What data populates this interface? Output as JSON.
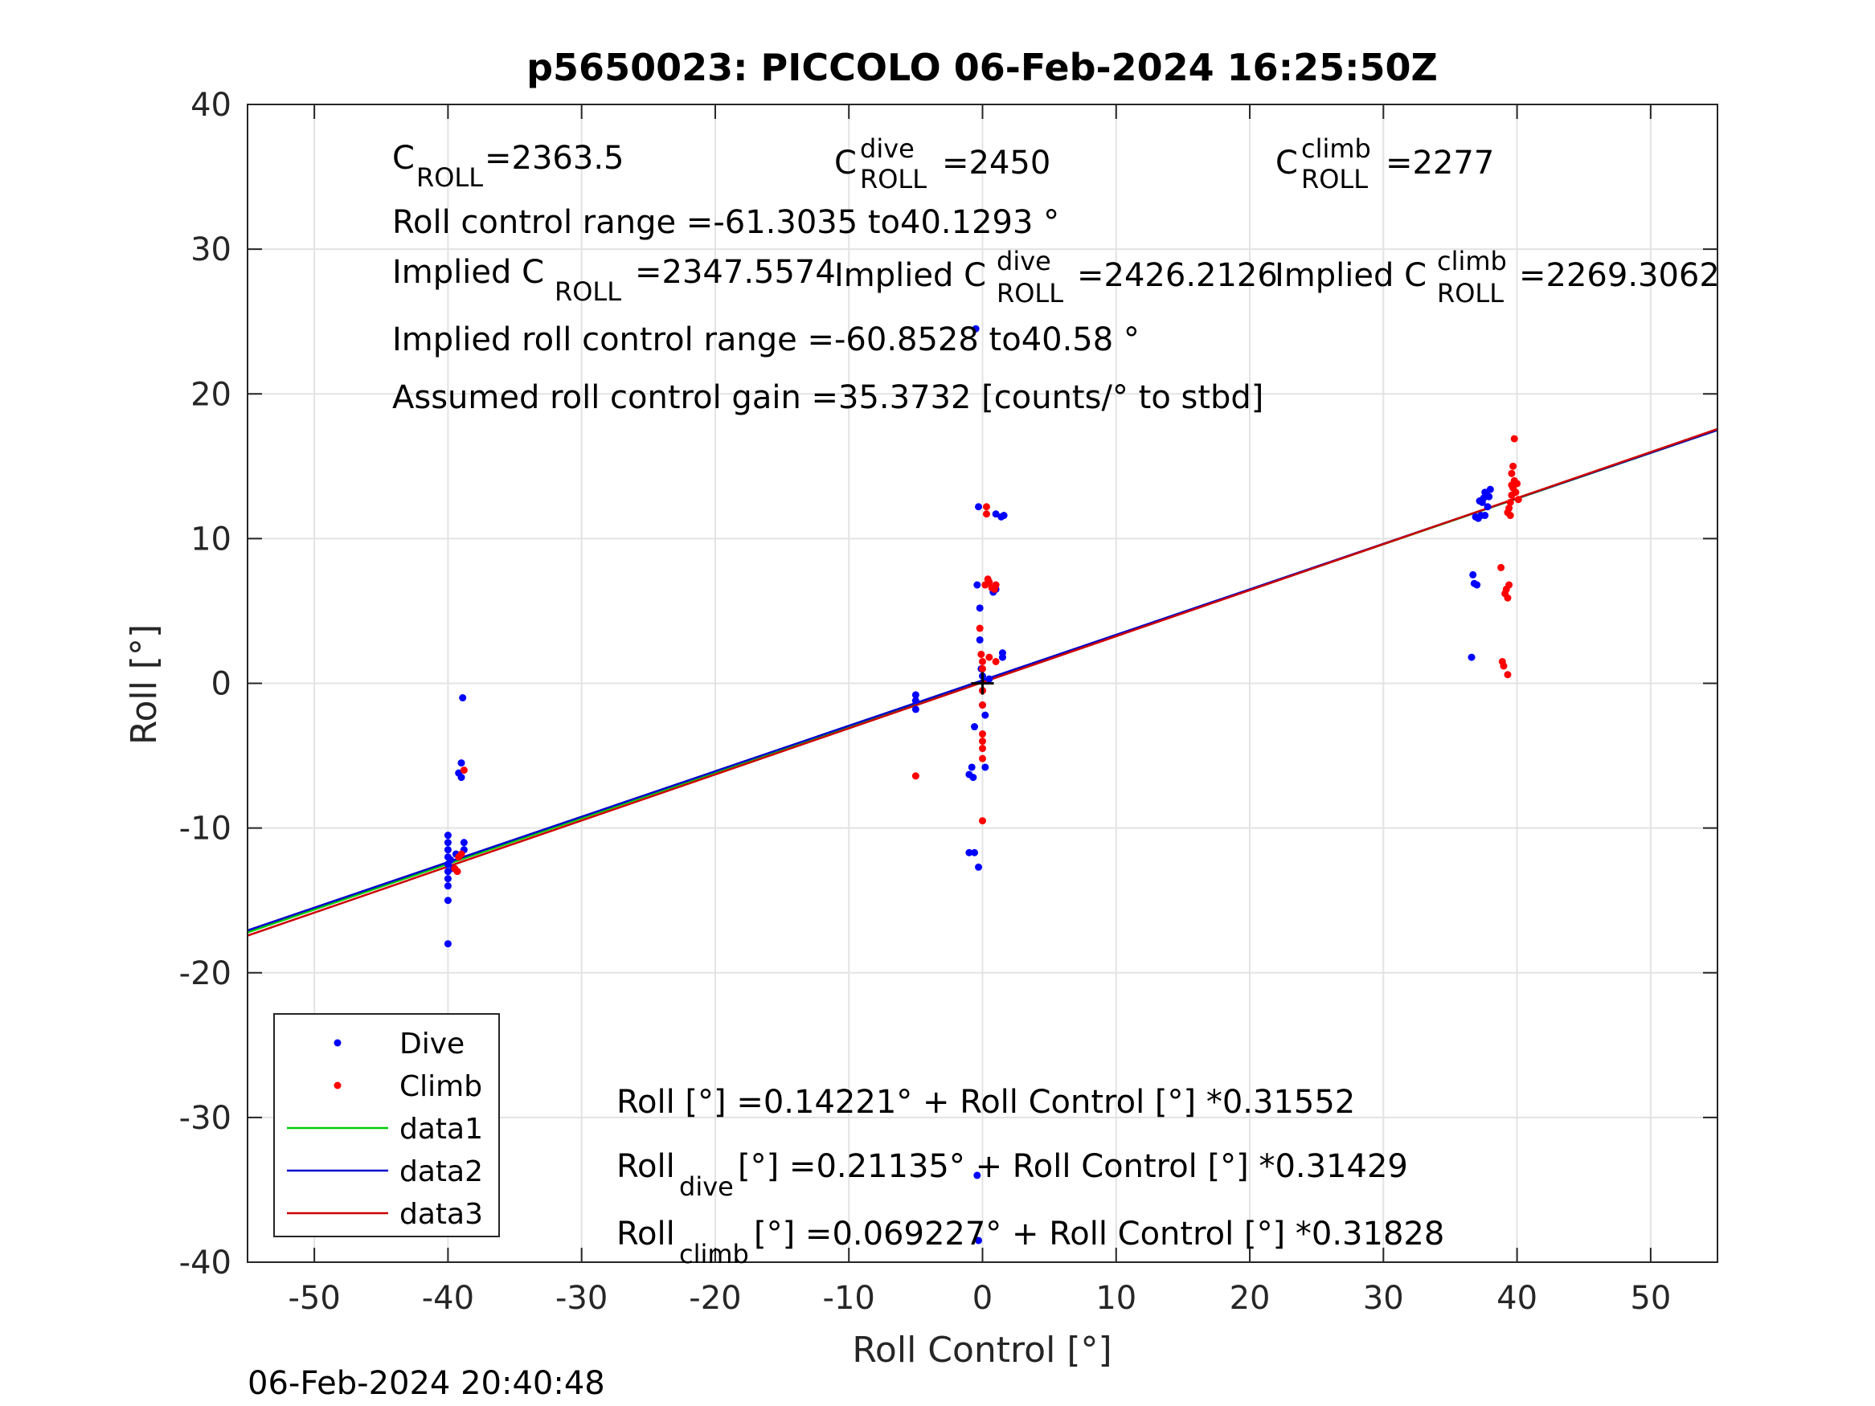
{
  "chart_data": {
    "type": "scatter",
    "title": "p5650023: PICCOLO 06-Feb-2024 16:25:50Z",
    "xlabel": "Roll Control [°]",
    "ylabel": "Roll [°]",
    "xlim": [
      -55,
      55
    ],
    "ylim": [
      -40,
      40
    ],
    "xticks": [
      -50,
      -40,
      -30,
      -20,
      -10,
      0,
      10,
      20,
      30,
      40,
      50
    ],
    "yticks": [
      -40,
      -30,
      -20,
      -10,
      0,
      10,
      20,
      30,
      40
    ],
    "grid": true,
    "legend_position": "bottom-left",
    "timestamp": "06-Feb-2024 20:40:48",
    "series": [
      {
        "name": "Dive",
        "kind": "points",
        "color": "#0000ff",
        "points": [
          [
            -40,
            -18
          ],
          [
            -40,
            -15
          ],
          [
            -40,
            -14
          ],
          [
            -40,
            -13.5
          ],
          [
            -40,
            -13
          ],
          [
            -40,
            -12.5
          ],
          [
            -40,
            -12
          ],
          [
            -40,
            -11.5
          ],
          [
            -40,
            -11
          ],
          [
            -40,
            -10.5
          ],
          [
            -39.8,
            -12.2
          ],
          [
            -39.6,
            -12.8
          ],
          [
            -39.4,
            -11.8
          ],
          [
            -39.2,
            -6.2
          ],
          [
            -39,
            -5.5
          ],
          [
            -39,
            -6.5
          ],
          [
            -38.9,
            -1
          ],
          [
            -38.8,
            -11
          ],
          [
            -38.8,
            -11.5
          ],
          [
            -5,
            -0.8
          ],
          [
            -5,
            -1.2
          ],
          [
            -5,
            -1.8
          ],
          [
            -1,
            -11.7
          ],
          [
            -0.6,
            -11.7
          ],
          [
            -1,
            -6.3
          ],
          [
            -0.8,
            -5.8
          ],
          [
            -0.7,
            -6.5
          ],
          [
            -0.6,
            -3
          ],
          [
            -0.4,
            6.8
          ],
          [
            -0.3,
            12.2
          ],
          [
            -0.3,
            -12.7
          ],
          [
            -0.2,
            5.2
          ],
          [
            -0.2,
            3
          ],
          [
            -0.1,
            1
          ],
          [
            0,
            0.5
          ],
          [
            0,
            -0.5
          ],
          [
            0,
            -1.5
          ],
          [
            0.2,
            -2.2
          ],
          [
            0.2,
            -5.8
          ],
          [
            0.5,
            0.3
          ],
          [
            0.8,
            6.3
          ],
          [
            1,
            11.7
          ],
          [
            1,
            6.5
          ],
          [
            1.4,
            11.5
          ],
          [
            1.5,
            1.8
          ],
          [
            1.5,
            2.1
          ],
          [
            1.6,
            11.6
          ],
          [
            -0.4,
            -34
          ],
          [
            -0.5,
            24.5
          ],
          [
            -0.3,
            -38.5
          ],
          [
            36.6,
            1.8
          ],
          [
            36.7,
            7.5
          ],
          [
            36.8,
            6.9
          ],
          [
            37,
            6.8
          ],
          [
            36.9,
            11.5
          ],
          [
            37.1,
            11.4
          ],
          [
            37.3,
            11.6
          ],
          [
            37.4,
            12.5
          ],
          [
            37.5,
            12.8
          ],
          [
            37.6,
            13.2
          ],
          [
            37.7,
            13
          ],
          [
            37.8,
            12.2
          ],
          [
            38,
            13.4
          ],
          [
            37.6,
            11.6
          ],
          [
            37.2,
            12.6
          ],
          [
            37.9,
            12.9
          ]
        ]
      },
      {
        "name": "Climb",
        "kind": "points",
        "color": "#ff0000",
        "points": [
          [
            -39.5,
            -12.8
          ],
          [
            -39.3,
            -13
          ],
          [
            -39.2,
            -12
          ],
          [
            -39,
            -11.8
          ],
          [
            -38.8,
            -6
          ],
          [
            -5,
            -6.4
          ],
          [
            -0.2,
            3.8
          ],
          [
            -0.1,
            2
          ],
          [
            0,
            1.5
          ],
          [
            0,
            1
          ],
          [
            0,
            -0.5
          ],
          [
            0,
            -1.5
          ],
          [
            0,
            -3.5
          ],
          [
            0,
            -4
          ],
          [
            0,
            -4.5
          ],
          [
            0,
            -5.2
          ],
          [
            0,
            -9.5
          ],
          [
            0.2,
            6.8
          ],
          [
            0.3,
            12.2
          ],
          [
            0.3,
            11.7
          ],
          [
            0.4,
            7.2
          ],
          [
            0.5,
            7
          ],
          [
            0.7,
            6.6
          ],
          [
            0.9,
            6.5
          ],
          [
            1,
            6.8
          ],
          [
            0.5,
            1.8
          ],
          [
            1,
            1.5
          ],
          [
            38.8,
            8
          ],
          [
            38.9,
            1.5
          ],
          [
            39,
            1.2
          ],
          [
            39.1,
            6.2
          ],
          [
            39.2,
            6.5
          ],
          [
            39.3,
            5.9
          ],
          [
            39.4,
            6.8
          ],
          [
            39.3,
            0.6
          ],
          [
            39.3,
            11.8
          ],
          [
            39.4,
            12.1
          ],
          [
            39.5,
            12.5
          ],
          [
            39.5,
            11.6
          ],
          [
            39.6,
            13
          ],
          [
            39.6,
            14.5
          ],
          [
            39.7,
            15
          ],
          [
            39.7,
            13.5
          ],
          [
            39.8,
            16.9
          ],
          [
            39.8,
            14
          ],
          [
            39.9,
            13.2
          ],
          [
            40,
            13.8
          ],
          [
            40.1,
            12.7
          ],
          [
            39.6,
            13.7
          ]
        ]
      },
      {
        "name": "data1",
        "kind": "line",
        "color": "#00cc00",
        "intercept": 0.14221,
        "slope": 0.31552
      },
      {
        "name": "data2",
        "kind": "line",
        "color": "#0000cc",
        "intercept": 0.21135,
        "slope": 0.31429
      },
      {
        "name": "data3",
        "kind": "line",
        "color": "#cc0000",
        "intercept": 0.069227,
        "slope": 0.31828
      }
    ],
    "annotations": {
      "c_roll": "=2363.5",
      "c_roll_dive": "=2450",
      "c_roll_climb": "=2277",
      "roll_control_range": "Roll control range =-61.3035 to40.1293 °",
      "implied_label": "Implied C",
      "implied_c_roll": "=2347.5574",
      "implied_c_roll_dive": "=2426.2126",
      "implied_c_roll_climb": "=2269.3062",
      "implied_range": "Implied roll control range =-60.8528 to40.58 °",
      "gain": "Assumed roll control gain =35.3732 [counts/° to stbd]",
      "fit_all": "Roll [°] =0.14221° + Roll Control [°] *0.31552",
      "fit_dive_rest": " [°] =0.21135° + Roll Control [°] *0.31429",
      "fit_climb_rest": " [°] =0.069227° + Roll Control [°] *0.31828",
      "roll_word": "Roll",
      "c_letter": "C",
      "roll_sub": "ROLL",
      "dive_sup": "dive",
      "climb_sup": "climb",
      "dive_sub": "dive",
      "climb_sub": "climb"
    }
  }
}
